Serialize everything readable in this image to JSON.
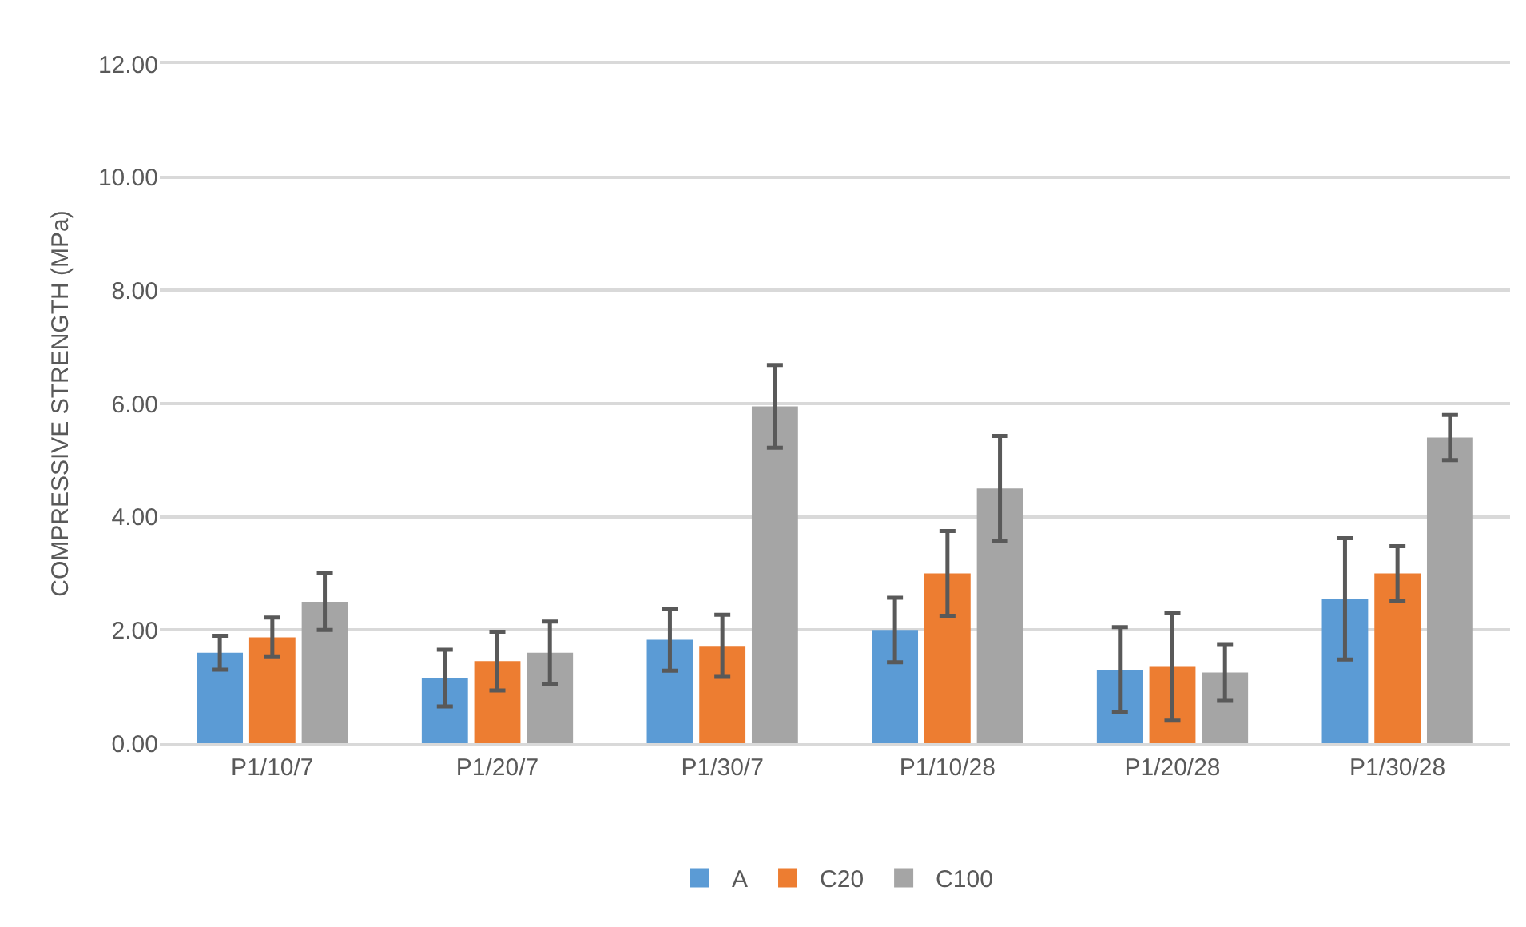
{
  "chart_data": {
    "type": "bar",
    "ylabel": "COMPRESSIVE STRENGTH (MPa)",
    "categories": [
      "P1/10/7",
      "P1/20/7",
      "P1/30/7",
      "P1/10/28",
      "P1/20/28",
      "P1/30/28"
    ],
    "series": [
      {
        "name": "A",
        "color": "#5b9bd5",
        "values": [
          1.6,
          1.15,
          1.83,
          2.0,
          1.3,
          2.55
        ],
        "errors": [
          0.3,
          0.5,
          0.55,
          0.57,
          0.75,
          1.07
        ]
      },
      {
        "name": "C20",
        "color": "#ed7d31",
        "values": [
          1.87,
          1.45,
          1.72,
          3.0,
          1.35,
          3.0
        ],
        "errors": [
          0.35,
          0.52,
          0.55,
          0.75,
          0.95,
          0.48
        ]
      },
      {
        "name": "C100",
        "color": "#a5a5a5",
        "values": [
          2.5,
          1.6,
          5.95,
          4.5,
          1.25,
          5.4
        ],
        "errors": [
          0.5,
          0.55,
          0.73,
          0.93,
          0.5,
          0.4
        ]
      }
    ],
    "ylim": [
      0,
      12
    ],
    "yticks": [
      {
        "value": 0,
        "label": "0.00"
      },
      {
        "value": 2,
        "label": "2.00"
      },
      {
        "value": 4,
        "label": "4.00"
      },
      {
        "value": 6,
        "label": "6.00"
      },
      {
        "value": 8,
        "label": "8.00"
      },
      {
        "value": 10,
        "label": "10.00"
      },
      {
        "value": 12,
        "label": "12.00"
      }
    ],
    "grid": "y",
    "legend": "bottom"
  }
}
